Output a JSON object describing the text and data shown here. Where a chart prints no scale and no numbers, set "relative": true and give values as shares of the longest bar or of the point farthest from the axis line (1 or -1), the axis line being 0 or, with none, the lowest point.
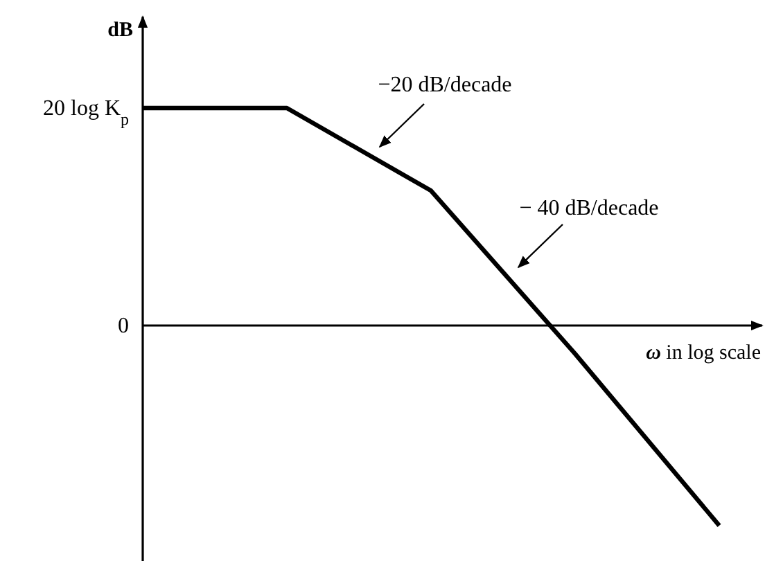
{
  "chart_data": {
    "type": "line",
    "relative": true,
    "xlabel": "ω in log scale",
    "ylabel": "dB",
    "marker": "none",
    "line_style": "solid",
    "categories": [
      null,
      null,
      null,
      null,
      null
    ],
    "series": [
      {
        "color": "#000000",
        "values": [
          1,
          1,
          0.62,
          -0.13,
          -0.92
        ]
      }
    ],
    "annotations": [
      "20 log K$_{p}$",
      "0",
      "−20 dB/decade",
      "− 40 dB/decade"
    ]
  }
}
